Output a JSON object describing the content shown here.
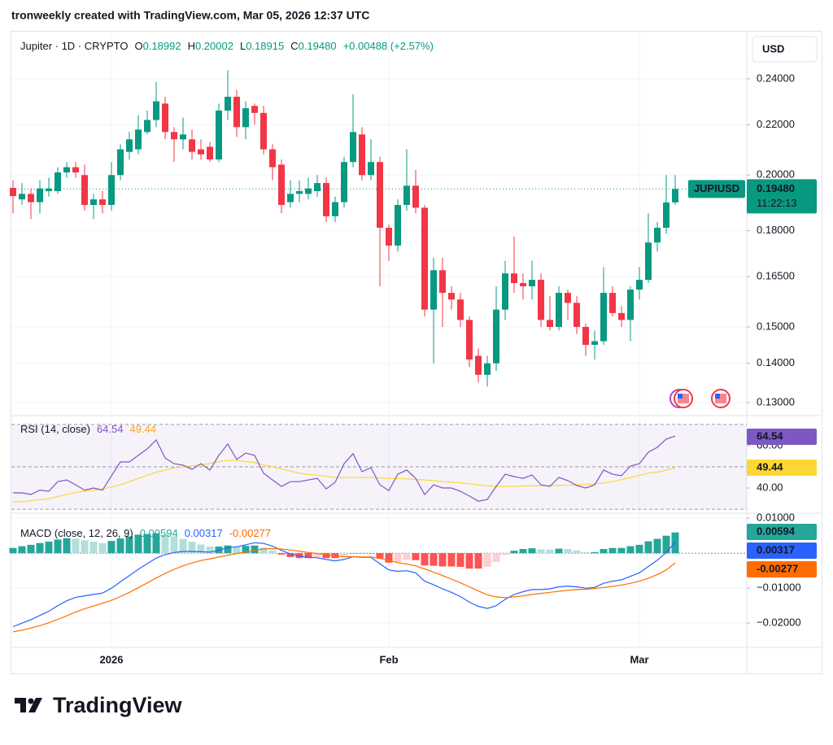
{
  "header": "tronweekly created with TradingView.com, Mar 05, 2026 12:37 UTC",
  "brand": "TradingView",
  "chart_data": [
    {
      "type": "candlestick",
      "title": "Jupiter · 1D · CRYPTO",
      "ohlc_legend": [
        {
          "key": "O",
          "text": "0.18992"
        },
        {
          "key": "H",
          "text": "0.20002"
        },
        {
          "key": "L",
          "text": "0.18915"
        },
        {
          "key": "C",
          "text": "0.19480"
        }
      ],
      "change": "+0.00488 (+2.57%)",
      "currency": "USD",
      "symbol": "JUPIUSD",
      "last_price": {
        "value": 0.1948,
        "label": "0.19480"
      },
      "countdown": "11:22:13",
      "categories": [
        null,
        null,
        null,
        null,
        null,
        null,
        null,
        null,
        null,
        null,
        null,
        "2026",
        null,
        null,
        null,
        null,
        null,
        null,
        null,
        null,
        null,
        null,
        null,
        null,
        null,
        null,
        null,
        null,
        null,
        null,
        null,
        null,
        null,
        null,
        null,
        null,
        null,
        null,
        null,
        null,
        null,
        null,
        "Feb",
        null,
        null,
        null,
        null,
        null,
        null,
        null,
        null,
        null,
        null,
        null,
        null,
        null,
        null,
        null,
        null,
        null,
        null,
        null,
        null,
        null,
        null,
        null,
        null,
        null,
        null,
        null,
        "Mar",
        null,
        null,
        null,
        null
      ],
      "open": [
        0.1952,
        0.191,
        0.193,
        0.19,
        0.194,
        0.194,
        0.201,
        0.203,
        0.2,
        0.189,
        0.191,
        0.189,
        0.2,
        0.209,
        0.21,
        0.217,
        0.222,
        0.229,
        0.217,
        0.214,
        0.214,
        0.21,
        0.211,
        0.206,
        0.226,
        0.232,
        0.219,
        0.228,
        0.225,
        0.21,
        0.204,
        0.19,
        0.193,
        0.193,
        0.194,
        0.197,
        0.185,
        0.19,
        0.205,
        0.216,
        0.2,
        0.205,
        0.181,
        0.175,
        0.189,
        0.196,
        0.188,
        0.155,
        0.167,
        0.16,
        0.158,
        0.152,
        0.142,
        0.137,
        0.14,
        0.155,
        0.166,
        0.163,
        0.162,
        0.164,
        0.152,
        0.15,
        0.16,
        0.157,
        0.15,
        0.145,
        0.146,
        0.16,
        0.154,
        0.152,
        0.161,
        0.164,
        0.176,
        0.181,
        0.18992
      ],
      "high": [
        0.198,
        0.197,
        0.195,
        0.198,
        0.199,
        0.203,
        0.205,
        0.205,
        0.204,
        0.193,
        0.194,
        0.205,
        0.212,
        0.217,
        0.224,
        0.226,
        0.2385,
        0.232,
        0.219,
        0.223,
        0.218,
        0.214,
        0.213,
        0.229,
        0.244,
        0.235,
        0.23,
        0.229,
        0.228,
        0.212,
        0.206,
        0.198,
        0.198,
        0.199,
        0.2,
        0.199,
        0.192,
        0.207,
        0.233,
        0.219,
        0.214,
        0.207,
        0.182,
        0.191,
        0.21,
        0.202,
        0.189,
        0.171,
        0.171,
        0.162,
        0.16,
        0.153,
        0.144,
        0.142,
        0.162,
        0.17,
        0.178,
        0.166,
        0.17,
        0.166,
        0.159,
        0.162,
        0.161,
        0.159,
        0.151,
        0.149,
        0.168,
        0.162,
        0.156,
        0.162,
        0.168,
        0.186,
        0.183,
        0.2,
        0.20002
      ],
      "low": [
        0.186,
        0.189,
        0.184,
        0.186,
        0.192,
        0.193,
        0.199,
        0.199,
        0.187,
        0.184,
        0.186,
        0.187,
        0.198,
        0.206,
        0.208,
        0.216,
        0.219,
        0.214,
        0.205,
        0.21,
        0.206,
        0.206,
        0.205,
        0.205,
        0.222,
        0.215,
        0.214,
        0.22,
        0.208,
        0.198,
        0.186,
        0.188,
        0.19,
        0.191,
        0.192,
        0.183,
        0.183,
        0.188,
        0.203,
        0.198,
        0.198,
        0.162,
        0.17,
        0.173,
        0.187,
        0.186,
        0.153,
        0.14,
        0.15,
        0.155,
        0.15,
        0.139,
        0.135,
        0.134,
        0.138,
        0.152,
        0.16,
        0.158,
        0.158,
        0.15,
        0.149,
        0.149,
        0.152,
        0.148,
        0.142,
        0.141,
        0.145,
        0.153,
        0.15,
        0.146,
        0.158,
        0.163,
        0.173,
        0.179,
        0.18915
      ],
      "close": [
        0.1922,
        0.193,
        0.19,
        0.195,
        0.195,
        0.201,
        0.203,
        0.201,
        0.189,
        0.191,
        0.189,
        0.2,
        0.21,
        0.214,
        0.218,
        0.222,
        0.23,
        0.217,
        0.214,
        0.216,
        0.209,
        0.208,
        0.206,
        0.226,
        0.232,
        0.219,
        0.227,
        0.225,
        0.21,
        0.203,
        0.189,
        0.193,
        0.194,
        0.195,
        0.197,
        0.185,
        0.19,
        0.205,
        0.217,
        0.2,
        0.205,
        0.181,
        0.175,
        0.189,
        0.196,
        0.188,
        0.155,
        0.167,
        0.16,
        0.158,
        0.152,
        0.141,
        0.137,
        0.14,
        0.155,
        0.166,
        0.163,
        0.162,
        0.164,
        0.152,
        0.15,
        0.16,
        0.157,
        0.15,
        0.145,
        0.146,
        0.16,
        0.154,
        0.152,
        0.161,
        0.164,
        0.176,
        0.181,
        0.1899,
        0.1948
      ],
      "up_color": "#089981",
      "down_color": "#f23645",
      "log_scale": true,
      "grid": true,
      "ylim": [
        0.127,
        0.262
      ],
      "yticks": [
        {
          "value": 0.13,
          "label": "0.13000"
        },
        {
          "value": 0.14,
          "label": "0.14000"
        },
        {
          "value": 0.15,
          "label": "0.15000"
        },
        {
          "value": 0.165,
          "label": "0.16500"
        },
        {
          "value": 0.18,
          "label": "0.18000"
        },
        {
          "value": 0.2,
          "label": "0.20000"
        },
        {
          "value": 0.22,
          "label": "0.22000"
        },
        {
          "value": 0.24,
          "label": "0.24000"
        }
      ]
    },
    {
      "type": "rsi",
      "title": "RSI (14, close)",
      "series": [
        {
          "color": "#7e57c2",
          "values": [
            37.7,
            37.7,
            37,
            39,
            38.5,
            43,
            43.8,
            41.5,
            39,
            40,
            39,
            45.8,
            52.3,
            52.3,
            55.4,
            58.5,
            62.7,
            54.2,
            51.5,
            50.8,
            48.8,
            51.5,
            48.5,
            55.4,
            60.8,
            53.5,
            56.5,
            55.4,
            47,
            43.8,
            40.8,
            43,
            43,
            43.8,
            44.6,
            39.6,
            42.7,
            51.5,
            56.2,
            47.7,
            49.6,
            41.5,
            38.8,
            46.5,
            48.5,
            44.6,
            36.9,
            41.5,
            40,
            40,
            38.5,
            36.2,
            33.8,
            34.6,
            40.8,
            46.5,
            45.4,
            44.6,
            46.2,
            41.5,
            40.8,
            45,
            43.5,
            41.2,
            40,
            41.5,
            48.5,
            46.5,
            45.8,
            50.4,
            51.5,
            56.9,
            59.2,
            63.1,
            64.54
          ]
        },
        {
          "color": "#fdd835",
          "values": [
            33.5,
            33.5,
            34,
            34.5,
            35,
            36,
            37,
            38,
            38.5,
            39,
            39.5,
            40.5,
            41.5,
            43,
            44.5,
            46,
            47.5,
            48.5,
            49.5,
            50,
            50.5,
            51,
            51.5,
            52.5,
            53,
            53,
            52.5,
            52,
            51,
            50,
            49,
            48,
            47,
            46.5,
            46,
            45.5,
            45,
            45,
            45,
            45,
            45,
            44.8,
            44.5,
            44.5,
            44.3,
            44,
            43.8,
            43.5,
            43,
            42.8,
            42.5,
            42,
            41.5,
            41,
            40.8,
            40.7,
            40.8,
            41,
            41,
            41,
            41,
            41.2,
            41.3,
            41.5,
            41.7,
            42,
            42.3,
            43,
            44,
            45,
            46,
            47,
            47.5,
            48.5,
            49.44
          ]
        }
      ],
      "levels": [
        30,
        50,
        70
      ],
      "band_color": "#7e57c2",
      "ylim": [
        28.5,
        73.8
      ],
      "yticks": [
        {
          "value": 40,
          "label": "40.00"
        },
        {
          "value": 60,
          "label": "60.00"
        }
      ]
    },
    {
      "type": "macd",
      "title": "MACD (close, 12, 26, 9)",
      "histogram": {
        "values": [
          0.0015,
          0.002,
          0.0024,
          0.0029,
          0.0033,
          0.0039,
          0.0043,
          0.0042,
          0.0037,
          0.0033,
          0.0029,
          0.0035,
          0.0042,
          0.0048,
          0.0053,
          0.0055,
          0.0057,
          0.0054,
          0.0048,
          0.0041,
          0.0033,
          0.0025,
          0.0019,
          0.0019,
          0.0022,
          0.0019,
          0.0021,
          0.0022,
          0.0016,
          0.0007,
          -0.0004,
          -0.0011,
          -0.0014,
          -0.0014,
          -0.0012,
          -0.0014,
          -0.0014,
          -0.0008,
          0,
          -0.0001,
          -0.0001,
          -0.0015,
          -0.0027,
          -0.0025,
          -0.0019,
          -0.002,
          -0.0035,
          -0.0036,
          -0.0038,
          -0.0038,
          -0.0039,
          -0.0044,
          -0.0044,
          -0.0039,
          -0.0025,
          -0.0005,
          0.0007,
          0.0012,
          0.0014,
          0.0011,
          0.001,
          0.0013,
          0.0012,
          0.0008,
          0.0003,
          0.0003,
          0.0012,
          0.0015,
          0.0015,
          0.002,
          0.0024,
          0.0034,
          0.0041,
          0.005,
          0.00594
        ],
        "colors": [
          "#26a69a",
          "#b2dfdb",
          "#ffcdd2",
          "#ff5252"
        ]
      },
      "series": [
        {
          "color": "#2962ff",
          "values": [
            -0.021,
            -0.02,
            -0.019,
            -0.0178,
            -0.0166,
            -0.015,
            -0.0136,
            -0.0126,
            -0.0122,
            -0.0118,
            -0.0114,
            -0.01,
            -0.0082,
            -0.0064,
            -0.0046,
            -0.003,
            -0.0014,
            -0.0004,
            0.0002,
            0.0005,
            0.0005,
            0.0004,
            0.0003,
            0.0008,
            0.0016,
            0.0018,
            0.0024,
            0.003,
            0.0028,
            0.002,
            0.0008,
            -0.0002,
            -0.0008,
            -0.0012,
            -0.0013,
            -0.0018,
            -0.0022,
            -0.0018,
            -0.001,
            -0.0012,
            -0.0012,
            -0.003,
            -0.0048,
            -0.0052,
            -0.005,
            -0.0056,
            -0.008,
            -0.009,
            -0.0102,
            -0.0112,
            -0.0124,
            -0.014,
            -0.0152,
            -0.0158,
            -0.015,
            -0.0132,
            -0.0118,
            -0.011,
            -0.0104,
            -0.0104,
            -0.0102,
            -0.0096,
            -0.0094,
            -0.0096,
            -0.01,
            -0.0098,
            -0.0086,
            -0.008,
            -0.0076,
            -0.0066,
            -0.0056,
            -0.0038,
            -0.002,
            0.0002,
            0.00317
          ]
        },
        {
          "color": "#ff6d00",
          "values": [
            -0.0225,
            -0.022,
            -0.0214,
            -0.0207,
            -0.0199,
            -0.0189,
            -0.0179,
            -0.0168,
            -0.0159,
            -0.0151,
            -0.0143,
            -0.0135,
            -0.0124,
            -0.0112,
            -0.0099,
            -0.0085,
            -0.0071,
            -0.0058,
            -0.0046,
            -0.0036,
            -0.0028,
            -0.0021,
            -0.0016,
            -0.0011,
            -0.0006,
            -0.0001,
            0.0003,
            0.0008,
            0.0012,
            0.0013,
            0.0012,
            0.0009,
            0.0006,
            0.0002,
            -0.0001,
            -0.0004,
            -0.0008,
            -0.001,
            -0.001,
            -0.0011,
            -0.0011,
            -0.0015,
            -0.0021,
            -0.0027,
            -0.0031,
            -0.0036,
            -0.0045,
            -0.0054,
            -0.0064,
            -0.0074,
            -0.0085,
            -0.0096,
            -0.0108,
            -0.0119,
            -0.0125,
            -0.0127,
            -0.0125,
            -0.0122,
            -0.0118,
            -0.0115,
            -0.0112,
            -0.0109,
            -0.0106,
            -0.0104,
            -0.0103,
            -0.0101,
            -0.0098,
            -0.0095,
            -0.0091,
            -0.0086,
            -0.008,
            -0.0072,
            -0.0061,
            -0.0048,
            -0.00277
          ]
        }
      ],
      "ylim": [
        -0.0267,
        0.0112
      ],
      "yticks": [
        {
          "value": -0.02,
          "label": "−0.02000"
        },
        {
          "value": -0.01,
          "label": "−0.01000"
        },
        {
          "value": 0.01,
          "label": "0.01000"
        }
      ]
    }
  ]
}
